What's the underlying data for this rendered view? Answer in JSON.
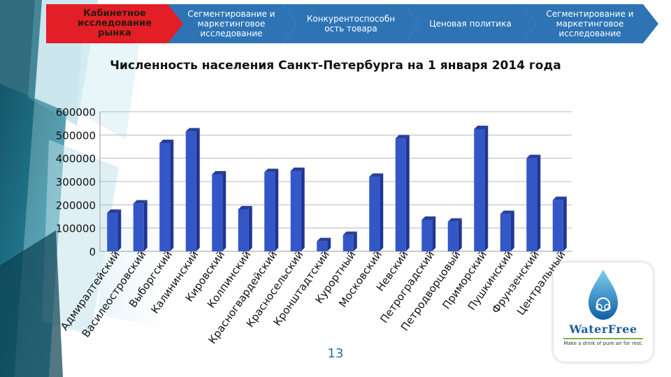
{
  "nav": {
    "tabs": [
      {
        "label": "Кабинетное исследование рынка",
        "active": true
      },
      {
        "label": "Сегментирование и маркетинговое исследование",
        "active": false
      },
      {
        "label": "Конкурентоспособн ость товара",
        "active": false
      },
      {
        "label": "Ценовая политика",
        "active": false
      },
      {
        "label": "Сегментирование и маркетинговое исследование",
        "active": false
      }
    ]
  },
  "colors": {
    "tab_active": "#e41e26",
    "tab": "#2e74b5",
    "bar": "#3457c8",
    "bar_top": "#2a3f9a"
  },
  "chart_data": {
    "type": "bar",
    "title": "Численность населения Санкт-Петербурга на 1 января 2014 года",
    "xlabel": "",
    "ylabel": "",
    "ylim": [
      0,
      600000
    ],
    "yticks": [
      "0",
      "100000",
      "200000",
      "300000",
      "400000",
      "500000",
      "600000"
    ],
    "grid": true,
    "categories": [
      "Адмиралтейский",
      "Василеостровский",
      "Выборгский",
      "Калининский",
      "Кировский",
      "Колпинский",
      "Красногвардейский",
      "Красносельский",
      "Кронштадтский",
      "Курортный",
      "Московский",
      "Невский",
      "Петроградский",
      "Петродворцовый",
      "Приморский",
      "Пушкинский",
      "Фрунзенский",
      "Центральный"
    ],
    "values": [
      165000,
      205000,
      465000,
      515000,
      330000,
      180000,
      340000,
      345000,
      43000,
      70000,
      320000,
      485000,
      135000,
      127000,
      525000,
      160000,
      400000,
      220000
    ]
  },
  "footer": {
    "page": "13"
  },
  "logo": {
    "name": "WaterFree",
    "tagline": "Make a drink of pure air for rest."
  }
}
